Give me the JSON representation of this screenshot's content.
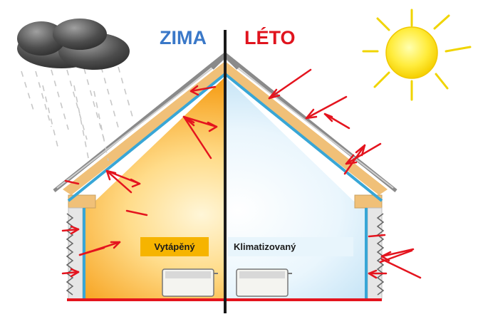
{
  "labels": {
    "winter": "ZIMA",
    "summer": "LÉTO",
    "heated": "Vytápěný",
    "cooled": "Klimatizovaný"
  },
  "colors": {
    "winter_label": "#3a78c8",
    "summer_label": "#e0141e",
    "heated_tag_bg": "#f6b400",
    "cooled_tag_bg": "#e8f5fc",
    "arrow": "#e4141e",
    "insulation": "#38a6d6",
    "roof_timber": "#f0c078",
    "divider": "#1a1a1a",
    "floor": "#e4141e"
  },
  "icons": [
    "rain-cloud-icon",
    "sun-icon",
    "radiator-icon"
  ]
}
